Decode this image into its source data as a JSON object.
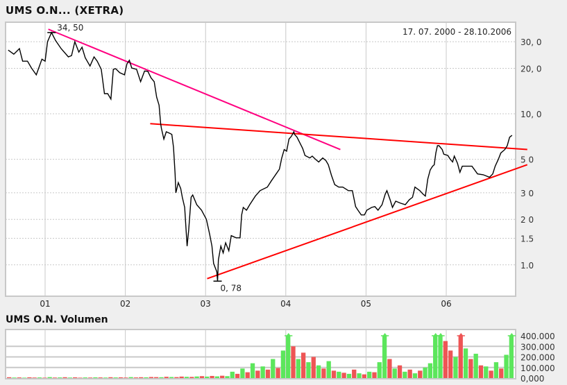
{
  "title": "UMS O.N... (XETRA)",
  "volume_title": "UMS O.N. Volumen",
  "date_range": "17. 07. 2000 - 28.10.2006",
  "chart_data": [
    {
      "type": "line",
      "title": "UMS O.N... (XETRA)",
      "y_scale": "log",
      "ylim": [
        0.62,
        40.4
      ],
      "xlim": [
        2000.54,
        2006.82
      ],
      "grid": true,
      "x_ticks": [
        {
          "x": 2001,
          "label": "01"
        },
        {
          "x": 2002,
          "label": "02"
        },
        {
          "x": 2003,
          "label": "03"
        },
        {
          "x": 2004,
          "label": "04"
        },
        {
          "x": 2005,
          "label": "05"
        },
        {
          "x": 2006,
          "label": "06"
        }
      ],
      "y_ticks": [
        {
          "v": 30,
          "label": "30, 0"
        },
        {
          "v": 20,
          "label": "20, 0"
        },
        {
          "v": 10,
          "label": "10, 0"
        },
        {
          "v": 5,
          "label": "5 0"
        },
        {
          "v": 3,
          "label": "3 0"
        },
        {
          "v": 2,
          "label": "2 0"
        },
        {
          "v": 1.5,
          "label": "1.5"
        },
        {
          "v": 1,
          "label": "1.0"
        }
      ],
      "annotations": [
        {
          "x": 2001.08,
          "v": 34.5,
          "label": "34, 50"
        },
        {
          "x": 2003.15,
          "v": 0.78,
          "label": "0, 78"
        }
      ],
      "price_color": "#000000",
      "price": [
        [
          2000.54,
          26.4
        ],
        [
          2000.61,
          24.8
        ],
        [
          2000.68,
          27.0
        ],
        [
          2000.72,
          22.3
        ],
        [
          2000.78,
          22.3
        ],
        [
          2000.83,
          20.1
        ],
        [
          2000.89,
          18.1
        ],
        [
          2000.96,
          23.0
        ],
        [
          2001.0,
          22.3
        ],
        [
          2001.03,
          30.0
        ],
        [
          2001.08,
          34.5
        ],
        [
          2001.13,
          30.6
        ],
        [
          2001.2,
          27.0
        ],
        [
          2001.29,
          23.8
        ],
        [
          2001.33,
          24.3
        ],
        [
          2001.37,
          30.0
        ],
        [
          2001.42,
          25.6
        ],
        [
          2001.46,
          27.6
        ],
        [
          2001.5,
          23.5
        ],
        [
          2001.56,
          20.7
        ],
        [
          2001.61,
          23.8
        ],
        [
          2001.65,
          22.3
        ],
        [
          2001.7,
          19.7
        ],
        [
          2001.74,
          13.6
        ],
        [
          2001.78,
          13.6
        ],
        [
          2001.82,
          12.5
        ],
        [
          2001.85,
          19.7
        ],
        [
          2001.88,
          19.9
        ],
        [
          2001.93,
          18.7
        ],
        [
          2001.99,
          18.1
        ],
        [
          2002.02,
          21.4
        ],
        [
          2002.05,
          22.6
        ],
        [
          2002.08,
          20.1
        ],
        [
          2002.14,
          19.7
        ],
        [
          2002.19,
          16.3
        ],
        [
          2002.24,
          19.2
        ],
        [
          2002.28,
          19.1
        ],
        [
          2002.32,
          17.3
        ],
        [
          2002.36,
          16.3
        ],
        [
          2002.39,
          12.9
        ],
        [
          2002.42,
          11.4
        ],
        [
          2002.44,
          8.6
        ],
        [
          2002.45,
          8.0
        ],
        [
          2002.48,
          6.8
        ],
        [
          2002.51,
          7.6
        ],
        [
          2002.56,
          7.4
        ],
        [
          2002.58,
          7.3
        ],
        [
          2002.6,
          6.0
        ],
        [
          2002.62,
          4.0
        ],
        [
          2002.63,
          3.0
        ],
        [
          2002.66,
          3.5
        ],
        [
          2002.69,
          3.2
        ],
        [
          2002.71,
          2.8
        ],
        [
          2002.74,
          2.4
        ],
        [
          2002.76,
          1.6
        ],
        [
          2002.77,
          1.33
        ],
        [
          2002.79,
          1.7
        ],
        [
          2002.82,
          2.8
        ],
        [
          2002.84,
          2.9
        ],
        [
          2002.89,
          2.5
        ],
        [
          2002.95,
          2.3
        ],
        [
          2003.01,
          2.0
        ],
        [
          2003.05,
          1.6
        ],
        [
          2003.08,
          1.33
        ],
        [
          2003.1,
          1.02
        ],
        [
          2003.14,
          0.9
        ],
        [
          2003.15,
          0.78
        ],
        [
          2003.16,
          1.08
        ],
        [
          2003.19,
          1.33
        ],
        [
          2003.22,
          1.2
        ],
        [
          2003.25,
          1.4
        ],
        [
          2003.29,
          1.24
        ],
        [
          2003.32,
          1.56
        ],
        [
          2003.38,
          1.51
        ],
        [
          2003.43,
          1.51
        ],
        [
          2003.45,
          2.14
        ],
        [
          2003.47,
          2.4
        ],
        [
          2003.51,
          2.3
        ],
        [
          2003.55,
          2.5
        ],
        [
          2003.62,
          2.85
        ],
        [
          2003.68,
          3.1
        ],
        [
          2003.77,
          3.27
        ],
        [
          2003.82,
          3.6
        ],
        [
          2003.88,
          4.0
        ],
        [
          2003.92,
          4.3
        ],
        [
          2003.95,
          5.1
        ],
        [
          2003.98,
          5.8
        ],
        [
          2004.01,
          5.65
        ],
        [
          2004.04,
          6.8
        ],
        [
          2004.07,
          7.1
        ],
        [
          2004.1,
          7.6
        ],
        [
          2004.11,
          7.3
        ],
        [
          2004.14,
          7.0
        ],
        [
          2004.17,
          6.5
        ],
        [
          2004.21,
          5.9
        ],
        [
          2004.24,
          5.3
        ],
        [
          2004.3,
          5.1
        ],
        [
          2004.33,
          5.25
        ],
        [
          2004.37,
          5.0
        ],
        [
          2004.41,
          4.8
        ],
        [
          2004.46,
          5.1
        ],
        [
          2004.5,
          4.9
        ],
        [
          2004.53,
          4.6
        ],
        [
          2004.57,
          3.9
        ],
        [
          2004.61,
          3.4
        ],
        [
          2004.66,
          3.27
        ],
        [
          2004.71,
          3.27
        ],
        [
          2004.78,
          3.1
        ],
        [
          2004.83,
          3.1
        ],
        [
          2004.87,
          2.43
        ],
        [
          2004.9,
          2.3
        ],
        [
          2004.94,
          2.14
        ],
        [
          2004.98,
          2.14
        ],
        [
          2005.01,
          2.3
        ],
        [
          2005.07,
          2.4
        ],
        [
          2005.11,
          2.43
        ],
        [
          2005.15,
          2.3
        ],
        [
          2005.2,
          2.5
        ],
        [
          2005.24,
          2.94
        ],
        [
          2005.26,
          3.1
        ],
        [
          2005.3,
          2.7
        ],
        [
          2005.33,
          2.4
        ],
        [
          2005.37,
          2.64
        ],
        [
          2005.43,
          2.56
        ],
        [
          2005.49,
          2.5
        ],
        [
          2005.54,
          2.7
        ],
        [
          2005.58,
          2.8
        ],
        [
          2005.61,
          3.27
        ],
        [
          2005.67,
          3.1
        ],
        [
          2005.71,
          2.94
        ],
        [
          2005.74,
          2.85
        ],
        [
          2005.77,
          3.7
        ],
        [
          2005.8,
          4.25
        ],
        [
          2005.83,
          4.5
        ],
        [
          2005.85,
          4.6
        ],
        [
          2005.87,
          5.5
        ],
        [
          2005.89,
          6.15
        ],
        [
          2005.91,
          6.15
        ],
        [
          2005.95,
          5.8
        ],
        [
          2005.97,
          5.4
        ],
        [
          2006.02,
          5.3
        ],
        [
          2006.05,
          5.0
        ],
        [
          2006.08,
          4.8
        ],
        [
          2006.1,
          5.25
        ],
        [
          2006.14,
          4.7
        ],
        [
          2006.17,
          4.1
        ],
        [
          2006.2,
          4.5
        ],
        [
          2006.23,
          4.5
        ],
        [
          2006.32,
          4.5
        ],
        [
          2006.39,
          4.0
        ],
        [
          2006.46,
          3.95
        ],
        [
          2006.54,
          3.8
        ],
        [
          2006.58,
          4.0
        ],
        [
          2006.61,
          4.5
        ],
        [
          2006.65,
          5.0
        ],
        [
          2006.68,
          5.5
        ],
        [
          2006.73,
          5.8
        ],
        [
          2006.76,
          6.15
        ],
        [
          2006.79,
          7.0
        ],
        [
          2006.82,
          7.2
        ]
      ],
      "trendlines": [
        {
          "color": "#ff0080",
          "from": [
            2001.04,
            36.3
          ],
          "to": [
            2004.68,
            5.8
          ]
        },
        {
          "color": "#ff0000",
          "from": [
            2002.31,
            8.6
          ],
          "to": [
            2007.01,
            5.8
          ]
        },
        {
          "color": "#ff0000",
          "from": [
            2003.02,
            0.81
          ],
          "to": [
            2007.01,
            4.6
          ]
        }
      ]
    },
    {
      "type": "bar",
      "title": "UMS O.N. Volumen",
      "ylim": [
        0,
        400000
      ],
      "y_ticks": [
        {
          "v": 400000,
          "label": "400.000"
        },
        {
          "v": 300000,
          "label": "300.000"
        },
        {
          "v": 200000,
          "label": "200.000"
        },
        {
          "v": 100000,
          "label": "100.000"
        },
        {
          "v": 0,
          "label": "0,000"
        }
      ],
      "up_color": "#5ce65c",
      "down_color": "#ee5555",
      "values": [
        [
          8000,
          "r"
        ],
        [
          5000,
          "g"
        ],
        [
          6000,
          "r"
        ],
        [
          4000,
          "g"
        ],
        [
          7000,
          "r"
        ],
        [
          5000,
          "r"
        ],
        [
          6000,
          "g"
        ],
        [
          4000,
          "r"
        ],
        [
          9000,
          "g"
        ],
        [
          5000,
          "r"
        ],
        [
          6000,
          "g"
        ],
        [
          8000,
          "r"
        ],
        [
          5000,
          "g"
        ],
        [
          7000,
          "r"
        ],
        [
          4000,
          "r"
        ],
        [
          6000,
          "g"
        ],
        [
          5000,
          "r"
        ],
        [
          7000,
          "g"
        ],
        [
          6000,
          "r"
        ],
        [
          5000,
          "g"
        ],
        [
          8000,
          "r"
        ],
        [
          6000,
          "g"
        ],
        [
          7000,
          "r"
        ],
        [
          5000,
          "r"
        ],
        [
          9000,
          "g"
        ],
        [
          6000,
          "r"
        ],
        [
          8000,
          "r"
        ],
        [
          7000,
          "g"
        ],
        [
          10000,
          "r"
        ],
        [
          9000,
          "r"
        ],
        [
          8000,
          "g"
        ],
        [
          12000,
          "r"
        ],
        [
          10000,
          "g"
        ],
        [
          9000,
          "r"
        ],
        [
          14000,
          "r"
        ],
        [
          12000,
          "g"
        ],
        [
          11000,
          "r"
        ],
        [
          15000,
          "g"
        ],
        [
          18000,
          "r"
        ],
        [
          14000,
          "g"
        ],
        [
          20000,
          "r"
        ],
        [
          16000,
          "g"
        ],
        [
          22000,
          "r"
        ],
        [
          18000,
          "g"
        ],
        [
          60000,
          "g"
        ],
        [
          40000,
          "r"
        ],
        [
          90000,
          "g"
        ],
        [
          55000,
          "r"
        ],
        [
          140000,
          "g"
        ],
        [
          70000,
          "r"
        ],
        [
          110000,
          "g"
        ],
        [
          80000,
          "r"
        ],
        [
          180000,
          "g"
        ],
        [
          95000,
          "r"
        ],
        [
          260000,
          "g"
        ],
        [
          420000,
          "g"
        ],
        [
          300000,
          "r"
        ],
        [
          180000,
          "g"
        ],
        [
          240000,
          "r"
        ],
        [
          150000,
          "g"
        ],
        [
          200000,
          "r"
        ],
        [
          120000,
          "g"
        ],
        [
          90000,
          "r"
        ],
        [
          160000,
          "g"
        ],
        [
          70000,
          "r"
        ],
        [
          60000,
          "g"
        ],
        [
          50000,
          "r"
        ],
        [
          40000,
          "g"
        ],
        [
          80000,
          "r"
        ],
        [
          45000,
          "g"
        ],
        [
          35000,
          "r"
        ],
        [
          60000,
          "g"
        ],
        [
          55000,
          "r"
        ],
        [
          150000,
          "g"
        ],
        [
          420000,
          "g"
        ],
        [
          180000,
          "r"
        ],
        [
          90000,
          "g"
        ],
        [
          120000,
          "r"
        ],
        [
          60000,
          "g"
        ],
        [
          80000,
          "r"
        ],
        [
          45000,
          "g"
        ],
        [
          70000,
          "r"
        ],
        [
          100000,
          "g"
        ],
        [
          140000,
          "g"
        ],
        [
          420000,
          "g"
        ],
        [
          420000,
          "g"
        ],
        [
          350000,
          "r"
        ],
        [
          260000,
          "r"
        ],
        [
          200000,
          "g"
        ],
        [
          420000,
          "r"
        ],
        [
          280000,
          "g"
        ],
        [
          180000,
          "r"
        ],
        [
          230000,
          "g"
        ],
        [
          120000,
          "r"
        ],
        [
          110000,
          "g"
        ],
        [
          70000,
          "r"
        ],
        [
          150000,
          "g"
        ],
        [
          90000,
          "r"
        ],
        [
          220000,
          "g"
        ],
        [
          420000,
          "g"
        ]
      ]
    }
  ]
}
